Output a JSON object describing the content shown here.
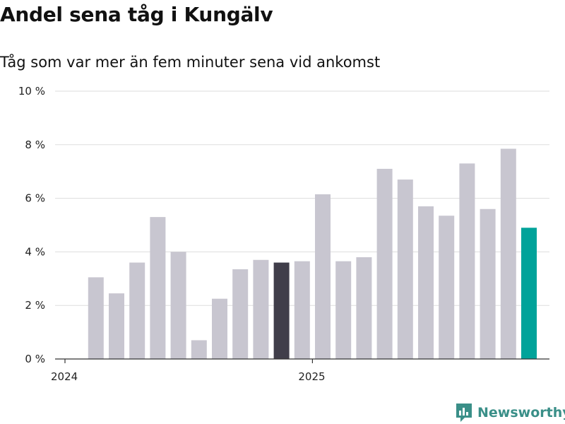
{
  "title": "Andel sena tåg i Kungälv",
  "subtitle": "Tåg som var mer än fem minuter sena vid ankomst",
  "brand": {
    "name": "Newsworthy",
    "color": "#3a8f88"
  },
  "colors": {
    "bar": "#c8c6d0",
    "highlight_dark": "#403e4a",
    "highlight_accent": "#00a39a",
    "grid": "#dddddd",
    "axis": "#333333"
  },
  "chart_data": {
    "type": "bar",
    "title": "Andel sena tåg i Kungälv",
    "subtitle": "Tåg som var mer än fem minuter sena vid ankomst",
    "xlabel": "",
    "ylabel": "",
    "ylim": [
      0,
      10
    ],
    "yticks": [
      0,
      2,
      4,
      6,
      8,
      10
    ],
    "ytick_labels": [
      "0 %",
      "2 %",
      "4 %",
      "6 %",
      "8 %",
      "10 %"
    ],
    "x_tick_labels": [
      {
        "label": "2024",
        "month_index": 0
      },
      {
        "label": "2025",
        "month_index": 12
      }
    ],
    "categories": [
      "2024-01",
      "2024-02",
      "2024-03",
      "2024-04",
      "2024-05",
      "2024-06",
      "2024-07",
      "2024-08",
      "2024-09",
      "2024-10",
      "2024-11",
      "2024-12",
      "2025-01",
      "2025-02",
      "2025-03",
      "2025-04",
      "2025-05",
      "2025-06",
      "2025-07",
      "2025-08",
      "2025-09",
      "2025-10",
      "2025-11",
      "2025-12"
    ],
    "values": [
      null,
      3.05,
      2.45,
      3.6,
      5.3,
      4.0,
      0.7,
      2.25,
      3.35,
      3.7,
      3.6,
      3.65,
      6.15,
      3.65,
      3.8,
      7.1,
      6.7,
      5.7,
      5.35,
      7.3,
      5.6,
      7.85,
      4.9,
      null
    ],
    "highlights": {
      "10": "dark",
      "22": "accent"
    },
    "grid": true
  }
}
